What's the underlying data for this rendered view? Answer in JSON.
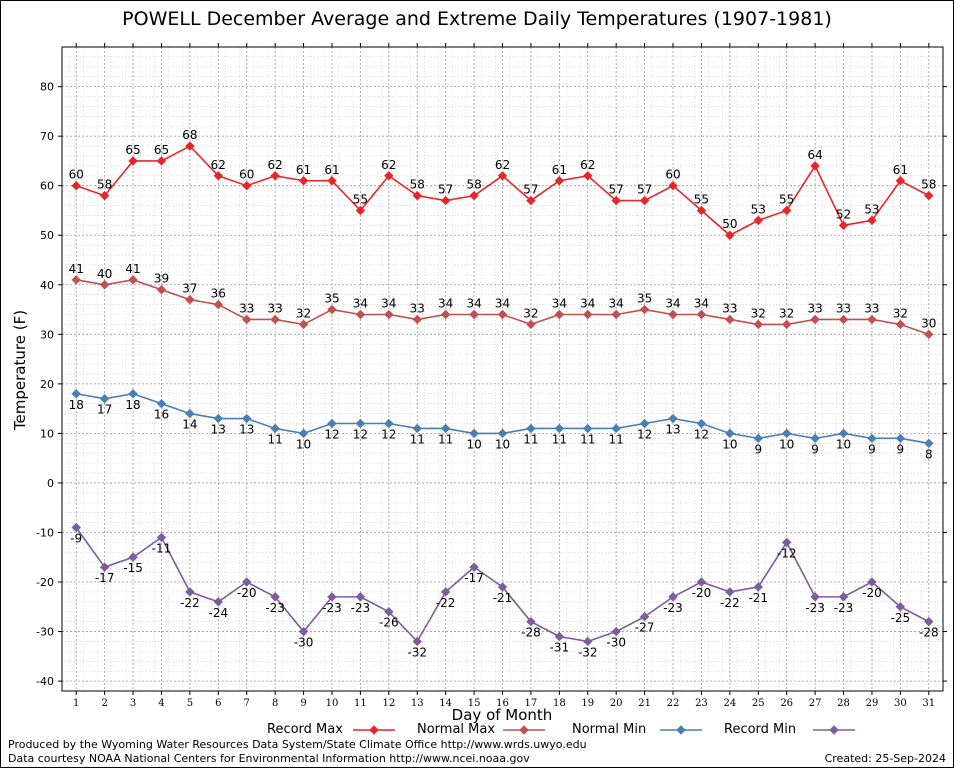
{
  "chart_data": {
    "type": "line",
    "title": "POWELL December Average and Extreme Daily Temperatures (1907-1981)",
    "xlabel": "Day of Month",
    "ylabel": "Temperature (F)",
    "x": [
      1,
      2,
      3,
      4,
      5,
      6,
      7,
      8,
      9,
      10,
      11,
      12,
      13,
      14,
      15,
      16,
      17,
      18,
      19,
      20,
      21,
      22,
      23,
      24,
      25,
      26,
      27,
      28,
      29,
      30,
      31
    ],
    "xlim": [
      0.5,
      31.5
    ],
    "ylim": [
      -42,
      88
    ],
    "yticks": [
      -40,
      -30,
      -20,
      -10,
      0,
      10,
      20,
      30,
      40,
      50,
      60,
      70,
      80
    ],
    "grid": true,
    "legend": "bottom",
    "series": [
      {
        "name": "Record Max",
        "color": "#e8262a",
        "label_pos": "above",
        "values": [
          60,
          58,
          65,
          65,
          68,
          62,
          60,
          62,
          61,
          61,
          55,
          62,
          58,
          57,
          58,
          62,
          57,
          61,
          62,
          57,
          57,
          60,
          55,
          50,
          53,
          55,
          64,
          52,
          53,
          61,
          58
        ]
      },
      {
        "name": "Normal Max",
        "color": "#c1504f",
        "label_pos": "above",
        "values": [
          41,
          40,
          41,
          39,
          37,
          36,
          33,
          33,
          32,
          35,
          34,
          34,
          33,
          34,
          34,
          34,
          32,
          34,
          34,
          34,
          35,
          34,
          34,
          33,
          32,
          32,
          33,
          33,
          33,
          32,
          30
        ]
      },
      {
        "name": "Normal Min",
        "color": "#4a7fb5",
        "label_pos": "below",
        "values": [
          18,
          17,
          18,
          16,
          14,
          13,
          13,
          11,
          10,
          12,
          12,
          12,
          11,
          11,
          10,
          10,
          11,
          11,
          11,
          11,
          12,
          13,
          12,
          10,
          9,
          10,
          9,
          10,
          9,
          9,
          8
        ]
      },
      {
        "name": "Record Min",
        "color": "#7f5d9d",
        "label_pos": "below",
        "values": [
          -9,
          -17,
          -15,
          -11,
          -22,
          -24,
          -20,
          -23,
          -30,
          -23,
          -23,
          -26,
          -32,
          -22,
          -17,
          -21,
          -28,
          -31,
          -32,
          -30,
          -27,
          -23,
          -20,
          -22,
          -21,
          -12,
          -23,
          -23,
          -20,
          -25,
          -28
        ]
      }
    ]
  },
  "footer": {
    "credit_line1": "Produced by the Wyoming Water Resources Data System/State Climate Office http://www.wrds.uwyo.edu",
    "credit_line2": "Data courtesy NOAA National Centers for Environmental Information http://www.ncei.noaa.gov",
    "created": "Created:  25-Sep-2024"
  }
}
